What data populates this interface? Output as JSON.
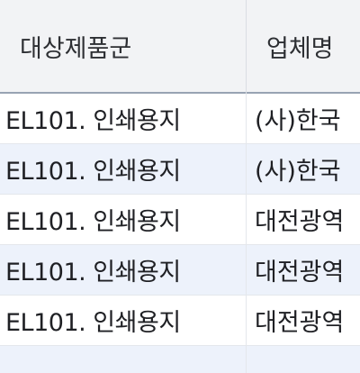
{
  "table": {
    "headers": [
      "대상제품군",
      "업체명"
    ],
    "rows": [
      [
        "EL101. 인쇄용지",
        "(사)한국"
      ],
      [
        "EL101. 인쇄용지",
        "(사)한국"
      ],
      [
        "EL101. 인쇄용지",
        "대전광역"
      ],
      [
        "EL101. 인쇄용지",
        "대전광역"
      ],
      [
        "EL101. 인쇄용지",
        "대전광역"
      ]
    ]
  },
  "colors": {
    "header_bg": "#f2f3f5",
    "row_alt_bg": "#edf2fb",
    "header_border": "#98a3b3"
  }
}
